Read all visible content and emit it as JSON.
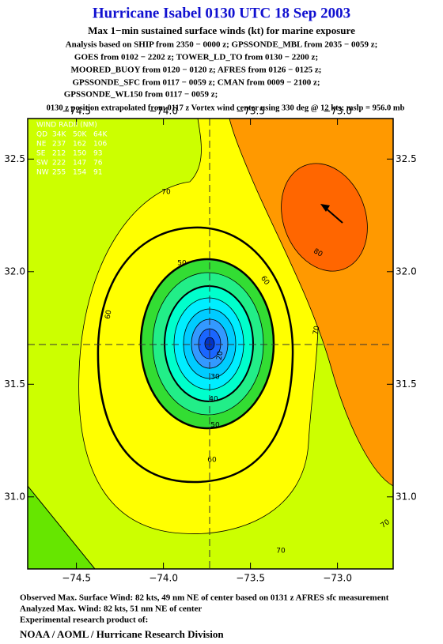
{
  "header": {
    "title": "Hurricane Isabel 0130 UTC 18 Sep 2003",
    "subtitle": "Max 1−min sustained surface winds (kt) for marine exposure",
    "lines": [
      "Analysis based on  SHIP from 2350 − 0000 z;  GPSSONDE_MBL from 2035 − 0059 z;",
      "GOES from 0102 − 2202 z;  TOWER_LD_TO from 0130 − 2200 z;",
      "MOORED_BUOY from 0120 − 0120 z;  AFRES from 0126 − 0125 z;",
      "GPSSONDE_SFC from 0117 − 0059 z;  CMAN from 0009 − 2100 z;",
      "GPSSONDE_WL150 from 0117 − 0059 z;"
    ],
    "position_note": "0130 z position extrapolated from 0117 z Vortex wind center using 330 deg @ 12 kts; mslp = 956.0 mb"
  },
  "map": {
    "xlim": [
      -74.78,
      -72.68
    ],
    "ylim": [
      30.68,
      32.68
    ],
    "xticks": [
      {
        "value": -74.5,
        "label": "−74.5"
      },
      {
        "value": -74.0,
        "label": "−74.0"
      },
      {
        "value": -73.5,
        "label": "−73.5"
      },
      {
        "value": -73.0,
        "label": "−73.0"
      }
    ],
    "yticks": [
      {
        "value": 32.5,
        "label": "32.5"
      },
      {
        "value": 32.0,
        "label": "32.0"
      },
      {
        "value": 31.5,
        "label": "31.5"
      },
      {
        "value": 31.0,
        "label": "31.0"
      }
    ],
    "contour_labels": [
      "70",
      "60",
      "50",
      "60",
      "70",
      "80",
      "70",
      "70",
      "50",
      "40",
      "30",
      "20",
      "60"
    ],
    "radii": {
      "title": "WIND RADII (NM)",
      "rows": [
        [
          "QD",
          "34K",
          "50K",
          "64K"
        ],
        [
          "NE",
          "237",
          "162",
          "106"
        ],
        [
          "SE",
          "212",
          "150",
          "93"
        ],
        [
          "SW",
          "222",
          "147",
          "76"
        ],
        [
          "NW",
          "255",
          "154",
          "91"
        ]
      ]
    }
  },
  "footer": {
    "lines": [
      "Observed Max. Surface Wind: 82 kts, 49 nm NE of center based on 0131 z AFRES sfc measurement",
      "Analyzed Max. Wind: 82 kts, 51 nm NE of center",
      "Experimental research product of:"
    ],
    "org": "NOAA / AOML / Hurricane Research Division"
  }
}
